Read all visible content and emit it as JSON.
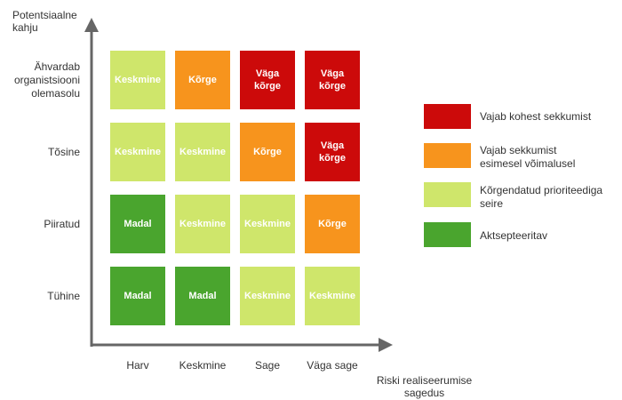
{
  "y_axis_title": "Potentsiaalne\nkahju",
  "x_axis_title": "Riski realiseerumise\nsagedus",
  "rows": [
    {
      "label": "Ähvardab\norganistsiooni\nolemasolu",
      "cells": [
        {
          "text": "Keskmine",
          "color": "#cfe66b"
        },
        {
          "text": "Kõrge",
          "color": "#f7941d"
        },
        {
          "text": "Väga\nkõrge",
          "color": "#cc0a0a"
        },
        {
          "text": "Väga\nkõrge",
          "color": "#cc0a0a"
        }
      ]
    },
    {
      "label": "Tõsine",
      "cells": [
        {
          "text": "Keskmine",
          "color": "#cfe66b"
        },
        {
          "text": "Keskmine",
          "color": "#cfe66b"
        },
        {
          "text": "Kõrge",
          "color": "#f7941d"
        },
        {
          "text": "Väga\nkõrge",
          "color": "#cc0a0a"
        }
      ]
    },
    {
      "label": "Piiratud",
      "cells": [
        {
          "text": "Madal",
          "color": "#4aa52e"
        },
        {
          "text": "Keskmine",
          "color": "#cfe66b"
        },
        {
          "text": "Keskmine",
          "color": "#cfe66b"
        },
        {
          "text": "Kõrge",
          "color": "#f7941d"
        }
      ]
    },
    {
      "label": "Tühine",
      "cells": [
        {
          "text": "Madal",
          "color": "#4aa52e"
        },
        {
          "text": "Madal",
          "color": "#4aa52e"
        },
        {
          "text": "Keskmine",
          "color": "#cfe66b"
        },
        {
          "text": "Keskmine",
          "color": "#cfe66b"
        }
      ]
    }
  ],
  "columns": [
    "Harv",
    "Keskmine",
    "Sage",
    "Väga sage"
  ],
  "legend": [
    {
      "color": "#cc0a0a",
      "text": "Vajab kohest sekkumist"
    },
    {
      "color": "#f7941d",
      "text": "Vajab sekkumist\nesimesel võimalusel"
    },
    {
      "color": "#cfe66b",
      "text": "Kõrgendatud prioriteediga\nseire"
    },
    {
      "color": "#4aa52e",
      "text": "Aktsepteeritav"
    }
  ],
  "colors": {
    "axis": "#666666"
  }
}
